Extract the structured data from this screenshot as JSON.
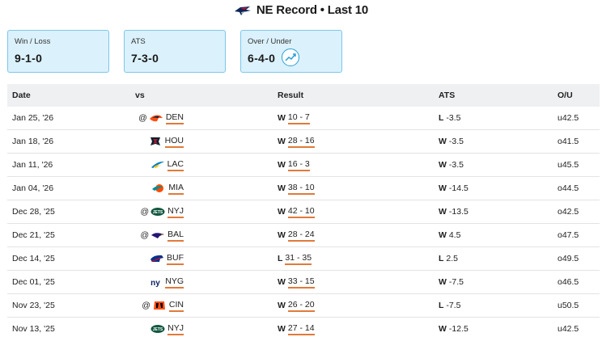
{
  "header": {
    "title": "NE Record • Last 10",
    "team_logo": "patriots-logo"
  },
  "cards": [
    {
      "label": "Win / Loss",
      "value": "9-1-0"
    },
    {
      "label": "ATS",
      "value": "7-3-0"
    },
    {
      "label": "Over / Under",
      "value": "6-4-0",
      "icon": "trend-chart-icon"
    }
  ],
  "table": {
    "columns": [
      "Date",
      "vs",
      "Result",
      "ATS",
      "O/U"
    ],
    "rows": [
      {
        "date": "Jan 25, '26",
        "away": "@",
        "logo": "broncos",
        "opp": "DEN",
        "wl": "W",
        "score": "10 - 7",
        "ats_wl": "L",
        "ats": "-3.5",
        "ou": "u42.5"
      },
      {
        "date": "Jan 18, '26",
        "away": "",
        "logo": "texans",
        "opp": "HOU",
        "wl": "W",
        "score": "28 - 16",
        "ats_wl": "W",
        "ats": "-3.5",
        "ou": "o41.5"
      },
      {
        "date": "Jan 11, '26",
        "away": "",
        "logo": "chargers",
        "opp": "LAC",
        "wl": "W",
        "score": "16 - 3",
        "ats_wl": "W",
        "ats": "-3.5",
        "ou": "u45.5"
      },
      {
        "date": "Jan 04, '26",
        "away": "",
        "logo": "dolphins",
        "opp": "MIA",
        "wl": "W",
        "score": "38 - 10",
        "ats_wl": "W",
        "ats": "-14.5",
        "ou": "o44.5"
      },
      {
        "date": "Dec 28, '25",
        "away": "@",
        "logo": "jets",
        "opp": "NYJ",
        "wl": "W",
        "score": "42 - 10",
        "ats_wl": "W",
        "ats": "-13.5",
        "ou": "o42.5"
      },
      {
        "date": "Dec 21, '25",
        "away": "@",
        "logo": "ravens",
        "opp": "BAL",
        "wl": "W",
        "score": "28 - 24",
        "ats_wl": "W",
        "ats": "4.5",
        "ou": "o47.5"
      },
      {
        "date": "Dec 14, '25",
        "away": "",
        "logo": "bills",
        "opp": "BUF",
        "wl": "L",
        "score": "31 - 35",
        "ats_wl": "L",
        "ats": "2.5",
        "ou": "o49.5"
      },
      {
        "date": "Dec 01, '25",
        "away": "",
        "logo": "giants",
        "opp": "NYG",
        "wl": "W",
        "score": "33 - 15",
        "ats_wl": "W",
        "ats": "-7.5",
        "ou": "o46.5"
      },
      {
        "date": "Nov 23, '25",
        "away": "@",
        "logo": "bengals",
        "opp": "CIN",
        "wl": "W",
        "score": "26 - 20",
        "ats_wl": "L",
        "ats": "-7.5",
        "ou": "u50.5"
      },
      {
        "date": "Nov 13, '25",
        "away": "",
        "logo": "jets",
        "opp": "NYJ",
        "wl": "W",
        "score": "27 - 14",
        "ats_wl": "W",
        "ats": "-12.5",
        "ou": "u42.5"
      }
    ]
  },
  "colors": {
    "accent": "#e07a3a",
    "card_bg": "#dbf1fb",
    "card_border": "#7cc7ea",
    "header_bg": "#eef0f2"
  }
}
